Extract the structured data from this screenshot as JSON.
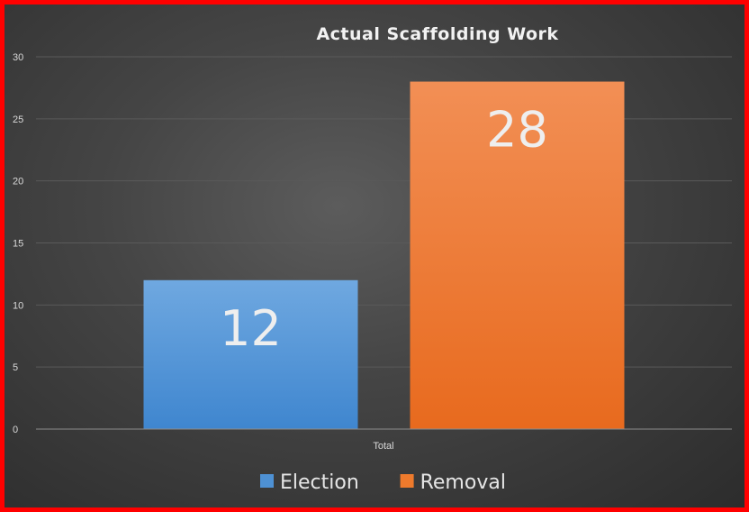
{
  "chart_data": {
    "type": "bar",
    "title": "Actual Scaffolding Work",
    "categories": [
      "Total"
    ],
    "series": [
      {
        "name": "Election",
        "values": [
          12
        ],
        "color": "#4e91d4"
      },
      {
        "name": "Removal",
        "values": [
          28
        ],
        "color": "#ee7a2c"
      }
    ],
    "ylim": [
      0,
      30
    ],
    "yticks": [
      0,
      5,
      10,
      15,
      20,
      25,
      30
    ],
    "grid": true,
    "legend": "bottom",
    "data_labels": true
  }
}
